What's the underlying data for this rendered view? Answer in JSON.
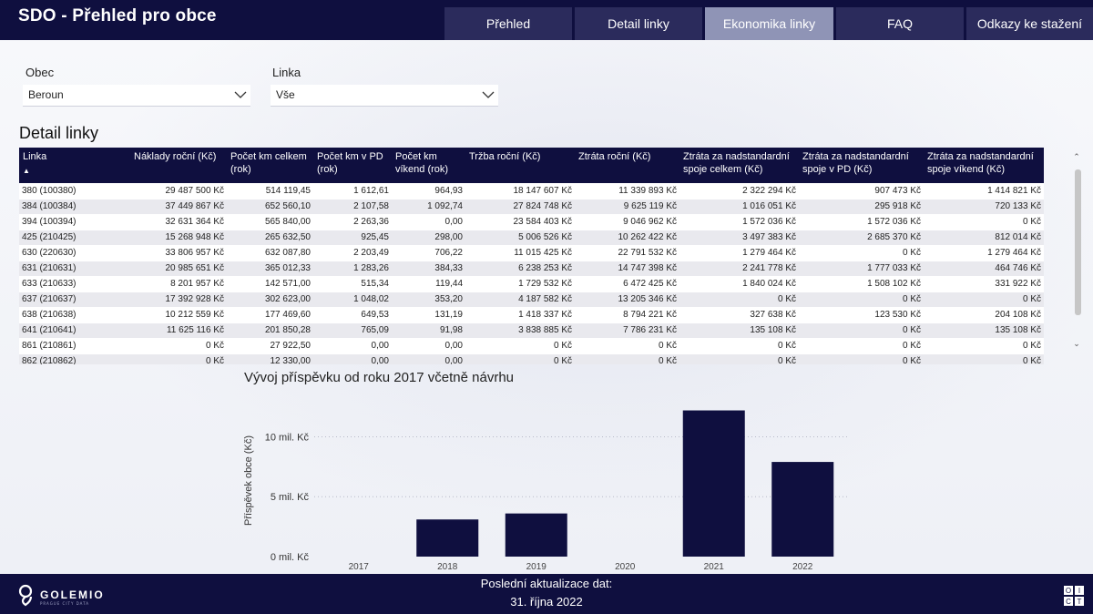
{
  "header": {
    "title": "SDO - Přehled pro obce",
    "tabs": [
      {
        "label": "Přehled",
        "active": false
      },
      {
        "label": "Detail linky",
        "active": false
      },
      {
        "label": "Ekonomika linky",
        "active": true
      },
      {
        "label": "FAQ",
        "active": false
      },
      {
        "label": "Odkazy ke stažení",
        "active": false
      }
    ]
  },
  "filters": {
    "obec": {
      "label": "Obec",
      "value": "Beroun"
    },
    "linka": {
      "label": "Linka",
      "value": "Vše"
    }
  },
  "section_title": "Detail linky",
  "table": {
    "columns": [
      "Linka",
      "Náklady roční (Kč)",
      "Počet km celkem (rok)",
      "Počet km v PD (rok)",
      "Počet km víkend (rok)",
      "Tržba roční (Kč)",
      "Ztráta roční (Kč)",
      "Ztráta za nadstandardní spoje celkem (Kč)",
      "Ztráta za nadstandardní spoje v PD (Kč)",
      "Ztráta za nadstandardní spoje víkend (Kč)"
    ],
    "sort_indicator": "▲",
    "rows": [
      [
        "380 (100380)",
        "29 487 500 Kč",
        "514 119,45",
        "1 612,61",
        "964,93",
        "18 147 607 Kč",
        "11 339 893 Kč",
        "2 322 294 Kč",
        "907 473 Kč",
        "1 414 821 Kč"
      ],
      [
        "384 (100384)",
        "37 449 867 Kč",
        "652 560,10",
        "2 107,58",
        "1 092,74",
        "27 824 748 Kč",
        "9 625 119 Kč",
        "1 016 051 Kč",
        "295 918 Kč",
        "720 133 Kč"
      ],
      [
        "394 (100394)",
        "32 631 364 Kč",
        "565 840,00",
        "2 263,36",
        "0,00",
        "23 584 403 Kč",
        "9 046 962 Kč",
        "1 572 036 Kč",
        "1 572 036 Kč",
        "0 Kč"
      ],
      [
        "425 (210425)",
        "15 268 948 Kč",
        "265 632,50",
        "925,45",
        "298,00",
        "5 006 526 Kč",
        "10 262 422 Kč",
        "3 497 383 Kč",
        "2 685 370 Kč",
        "812 014 Kč"
      ],
      [
        "630 (220630)",
        "33 806 957 Kč",
        "632 087,80",
        "2 203,49",
        "706,22",
        "11 015 425 Kč",
        "22 791 532 Kč",
        "1 279 464 Kč",
        "0 Kč",
        "1 279 464 Kč"
      ],
      [
        "631 (210631)",
        "20 985 651 Kč",
        "365 012,33",
        "1 283,26",
        "384,33",
        "6 238 253 Kč",
        "14 747 398 Kč",
        "2 241 778 Kč",
        "1 777 033 Kč",
        "464 746 Kč"
      ],
      [
        "633 (210633)",
        "8 201 957 Kč",
        "142 571,00",
        "515,34",
        "119,44",
        "1 729 532 Kč",
        "6 472 425 Kč",
        "1 840 024 Kč",
        "1 508 102 Kč",
        "331 922 Kč"
      ],
      [
        "637 (210637)",
        "17 392 928 Kč",
        "302 623,00",
        "1 048,02",
        "353,20",
        "4 187 582 Kč",
        "13 205 346 Kč",
        "0 Kč",
        "0 Kč",
        "0 Kč"
      ],
      [
        "638 (210638)",
        "10 212 559 Kč",
        "177 469,60",
        "649,53",
        "131,19",
        "1 418 337 Kč",
        "8 794 221 Kč",
        "327 638 Kč",
        "123 530 Kč",
        "204 108 Kč"
      ],
      [
        "641 (210641)",
        "11 625 116 Kč",
        "201 850,28",
        "765,09",
        "91,98",
        "3 838 885 Kč",
        "7 786 231 Kč",
        "135 108 Kč",
        "0 Kč",
        "135 108 Kč"
      ],
      [
        "861 (210861)",
        "0 Kč",
        "27 922,50",
        "0,00",
        "0,00",
        "0 Kč",
        "0 Kč",
        "0 Kč",
        "0 Kč",
        "0 Kč"
      ],
      [
        "862 (210862)",
        "0 Kč",
        "12 330,00",
        "0,00",
        "0,00",
        "0 Kč",
        "0 Kč",
        "0 Kč",
        "0 Kč",
        "0 Kč"
      ]
    ]
  },
  "chart_data": {
    "type": "bar",
    "title": "Vývoj příspěvku od roku 2017 včetně návrhu",
    "xlabel": "",
    "ylabel": "Příspěvek obce (Kč)",
    "categories": [
      "2017",
      "2018",
      "2019",
      "2020",
      "2021",
      "2022"
    ],
    "values": [
      0,
      3100000,
      3600000,
      0,
      12200000,
      7900000
    ],
    "yticks": [
      0,
      5000000,
      10000000
    ],
    "ytick_labels": [
      "0 mil. Kč",
      "5 mil. Kč",
      "10 mil. Kč"
    ],
    "ylim": [
      0,
      13000000
    ],
    "grid": true,
    "bar_color": "#0f0f3f"
  },
  "footer": {
    "update_label": "Poslední aktualizace dat:",
    "update_date": "31. října 2022",
    "logo_text": "GOLEMIO",
    "logo_sub": "PRAGUE CITY DATA",
    "oict_letters": [
      "O",
      "I",
      "C",
      "T"
    ]
  }
}
